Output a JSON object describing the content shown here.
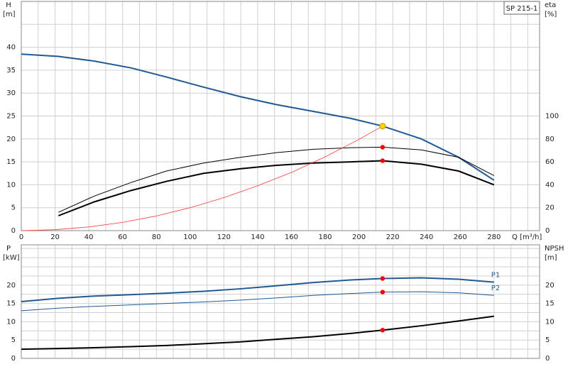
{
  "chart_data": [
    {
      "type": "line",
      "model": "SP 215-1",
      "ylabel": "H",
      "yunit": "[m]",
      "y2label": "eta",
      "y2unit": "[%]",
      "xlabel": "Q [m³/h]",
      "xlim": [
        0,
        307
      ],
      "xticks": [
        0,
        20,
        40,
        60,
        80,
        100,
        120,
        140,
        160,
        180,
        200,
        220,
        240,
        260,
        280
      ],
      "xgrid": [
        0,
        10,
        20,
        30,
        40,
        50,
        60,
        70,
        80,
        90,
        100,
        110,
        120,
        130,
        140,
        150,
        160,
        170,
        180,
        190,
        200,
        210,
        220,
        230,
        240,
        250,
        260,
        270,
        280,
        290,
        300
      ],
      "ylim": [
        0,
        50
      ],
      "yticks": [
        0,
        5,
        10,
        15,
        20,
        25,
        30,
        35,
        40
      ],
      "ygrid": [
        0,
        5,
        10,
        15,
        20,
        25,
        30,
        35,
        40,
        45
      ],
      "y2lim": [
        0,
        200
      ],
      "y2ticks": [
        0,
        20,
        40,
        60,
        80,
        100
      ],
      "series": [
        {
          "color": "#1f5a96",
          "width": 2,
          "axis": "y",
          "x": [
            0,
            22,
            43,
            65,
            86,
            108,
            130,
            151,
            173,
            195,
            214,
            237,
            259,
            280
          ],
          "values": [
            38.5,
            38,
            37,
            35.5,
            33.5,
            31.3,
            29.2,
            27.5,
            26,
            24.5,
            22.8,
            20,
            16,
            11
          ]
        },
        {
          "color": "#000000",
          "width": 1,
          "axis": "y2",
          "x": [
            22,
            43,
            65,
            86,
            108,
            130,
            151,
            173,
            195,
            214,
            237,
            259,
            280
          ],
          "values": [
            16,
            30,
            42,
            52,
            59,
            64,
            68,
            71,
            72.4,
            72.8,
            70.4,
            64,
            48
          ]
        },
        {
          "color": "#000000",
          "width": 2,
          "axis": "y2",
          "x": [
            22,
            43,
            65,
            86,
            108,
            130,
            151,
            173,
            195,
            214,
            237,
            259,
            280
          ],
          "values": [
            13,
            25,
            35,
            43,
            50,
            54,
            57,
            59,
            60,
            61,
            58,
            52,
            40
          ]
        },
        {
          "color": "#ff3b3b",
          "width": 0.8,
          "axis": "y",
          "x": [
            0,
            20,
            40,
            60,
            80,
            100,
            120,
            140,
            160,
            180,
            200,
            214
          ],
          "values": [
            0,
            0.2,
            0.8,
            1.8,
            3.2,
            5,
            7.2,
            9.8,
            12.7,
            16.1,
            19.9,
            22.8
          ]
        }
      ],
      "points": [
        {
          "x": 214,
          "y": 22.8,
          "axis": "y",
          "color": "#ffd700"
        },
        {
          "x": 214,
          "y": 72.8,
          "axis": "y2",
          "color": "#ff0000"
        },
        {
          "x": 214,
          "y": 61,
          "axis": "y2",
          "color": "#ff0000"
        }
      ]
    },
    {
      "type": "line",
      "ylabel": "P",
      "yunit": "[kW]",
      "y2label": "NPSH",
      "y2unit": "[m]",
      "xlim": [
        0,
        307
      ],
      "xgrid": [
        0,
        10,
        20,
        30,
        40,
        50,
        60,
        70,
        80,
        90,
        100,
        110,
        120,
        130,
        140,
        150,
        160,
        170,
        180,
        190,
        200,
        210,
        220,
        230,
        240,
        250,
        260,
        270,
        280,
        290,
        300
      ],
      "ylim": [
        0,
        31
      ],
      "yticks": [
        0,
        5,
        10,
        15,
        20
      ],
      "ygrid": [
        0,
        2.5,
        5,
        7.5,
        10,
        12.5,
        15,
        17.5,
        20,
        22.5,
        25,
        27.5,
        30
      ],
      "y2lim": [
        0,
        31
      ],
      "y2ticks": [
        0,
        5,
        10,
        15,
        20
      ],
      "series": [
        {
          "name": "P1",
          "color": "#1f5a96",
          "width": 2,
          "axis": "y",
          "x": [
            0,
            22,
            43,
            65,
            86,
            108,
            130,
            151,
            173,
            195,
            214,
            237,
            259,
            280
          ],
          "values": [
            15.5,
            16.4,
            17,
            17.4,
            17.8,
            18.3,
            19,
            19.8,
            20.7,
            21.4,
            21.8,
            22,
            21.6,
            20.8
          ]
        },
        {
          "name": "P2",
          "color": "#1f5a96",
          "width": 1,
          "axis": "y",
          "x": [
            0,
            22,
            43,
            65,
            86,
            108,
            130,
            151,
            173,
            195,
            214,
            237,
            259,
            280
          ],
          "values": [
            13,
            13.7,
            14.2,
            14.6,
            15,
            15.4,
            15.9,
            16.5,
            17.2,
            17.7,
            18.1,
            18.2,
            17.9,
            17.2
          ]
        },
        {
          "color": "#000000",
          "width": 2,
          "axis": "y2",
          "x": [
            0,
            22,
            43,
            65,
            86,
            108,
            130,
            151,
            173,
            195,
            214,
            237,
            259,
            280
          ],
          "values": [
            2.5,
            2.7,
            2.9,
            3.2,
            3.5,
            4,
            4.5,
            5.2,
            5.9,
            6.8,
            7.7,
            8.9,
            10.2,
            11.5
          ]
        }
      ],
      "points": [
        {
          "x": 214,
          "y": 21.8,
          "axis": "y",
          "color": "#ff0000"
        },
        {
          "x": 214,
          "y": 18.1,
          "axis": "y",
          "color": "#ff0000"
        },
        {
          "x": 214,
          "y": 7.7,
          "axis": "y2",
          "color": "#ff0000"
        }
      ]
    }
  ]
}
